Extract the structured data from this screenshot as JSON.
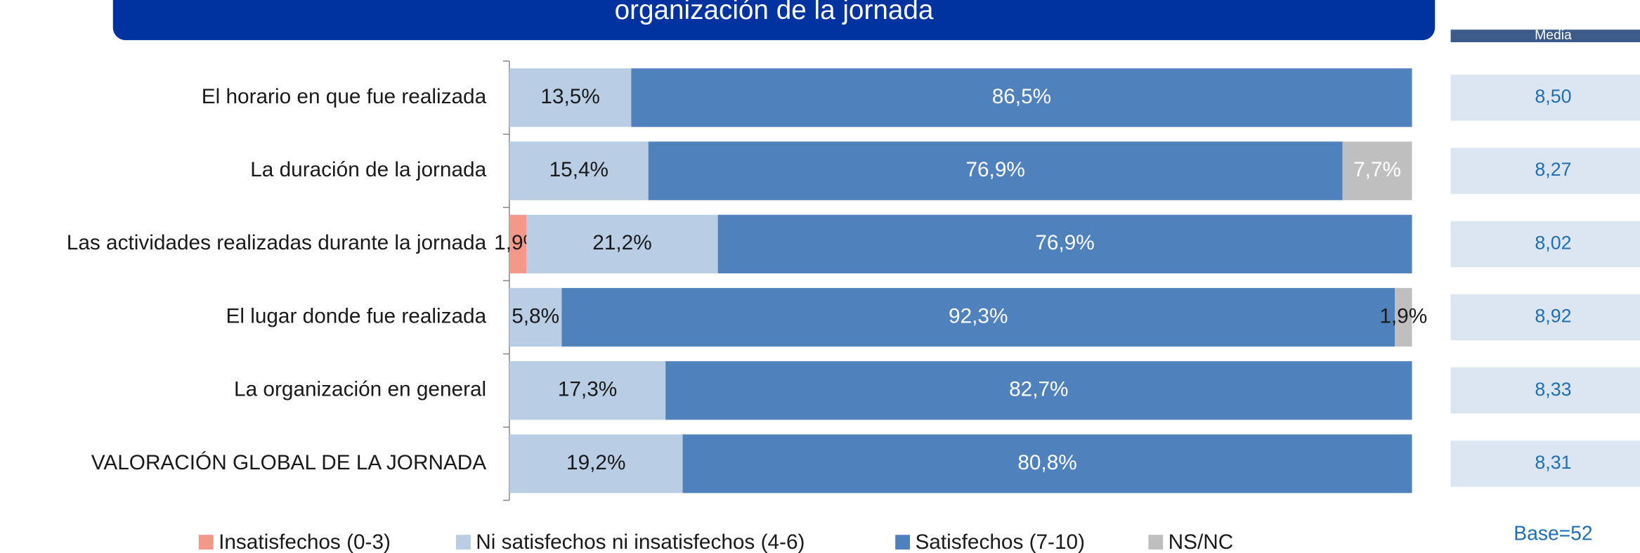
{
  "chart_data": {
    "type": "stacked-bar-horizontal",
    "title": "organización de la jornada",
    "categories": [
      "El horario en que fue realizada",
      "La duración de la jornada",
      "Las actividades realizadas durante la jornada",
      "El lugar donde fue realizada",
      "La organización en general",
      "VALORACIÓN GLOBAL DE LA JORNADA"
    ],
    "series": [
      {
        "name": "Insatisfechos (0-3)",
        "color": "#f4998a",
        "label_color": "#1a1a1a",
        "values": [
          null,
          null,
          1.9,
          null,
          null,
          null
        ],
        "value_labels": [
          null,
          null,
          "1,9%",
          null,
          null,
          null
        ]
      },
      {
        "name": "Ni satisfechos ni insatisfechos (4-6)",
        "color": "#b9cde5",
        "label_color": "#1a1a1a",
        "values": [
          13.5,
          15.4,
          21.2,
          5.8,
          17.3,
          19.2
        ],
        "value_labels": [
          "13,5%",
          "15,4%",
          "21,2%",
          "5,8%",
          "17,3%",
          "19,2%"
        ]
      },
      {
        "name": "Satisfechos (7-10)",
        "color": "#4f81bd",
        "label_color": "#ffffff",
        "values": [
          86.5,
          76.9,
          76.9,
          92.3,
          82.7,
          80.8
        ],
        "value_labels": [
          "86,5%",
          "76,9%",
          "76,9%",
          "92,3%",
          "82,7%",
          "80,8%"
        ]
      },
      {
        "name": "NS/NC",
        "color": "#bfbfbf",
        "label_color": "#ffffff",
        "values": [
          null,
          7.7,
          null,
          1.9,
          null,
          null
        ],
        "value_labels": [
          null,
          "7,7%",
          null,
          "1,9%",
          null,
          null
        ]
      }
    ],
    "media": {
      "header": "Media",
      "values": [
        8.5,
        8.27,
        8.02,
        8.92,
        8.33,
        8.31
      ],
      "value_labels": [
        "8,50",
        "8,27",
        "8,02",
        "8,92",
        "8,33",
        "8,31"
      ]
    },
    "note": "Base=52"
  }
}
